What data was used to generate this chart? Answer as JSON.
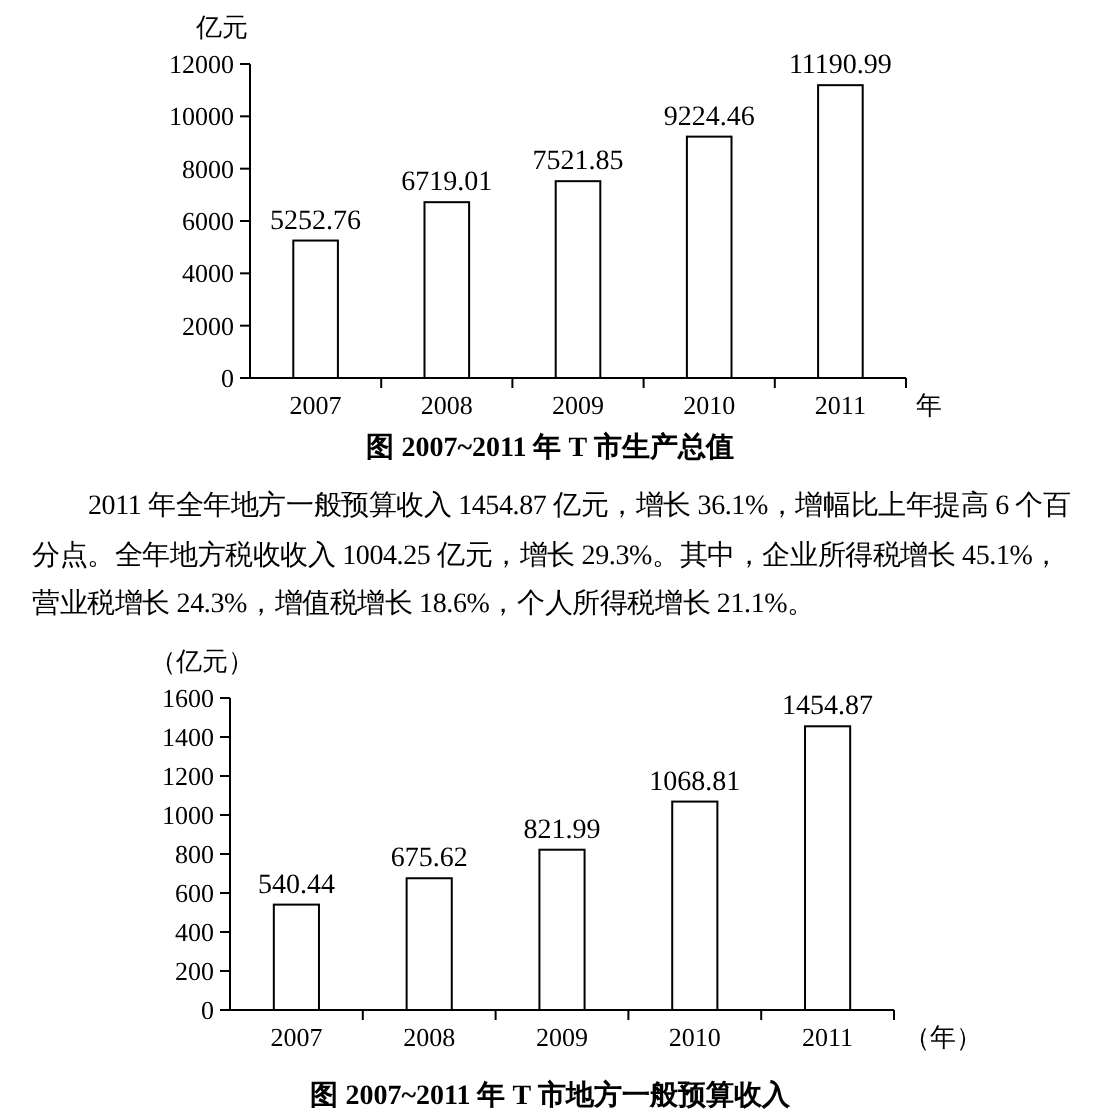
{
  "chart_data": [
    {
      "type": "bar",
      "title": "图 2007~2011 年 T 市生产总值",
      "xlabel": "年",
      "ylabel": "亿元",
      "categories": [
        "2007",
        "2008",
        "2009",
        "2010",
        "2011"
      ],
      "values": [
        5252.76,
        6719.01,
        7521.85,
        9224.46,
        11190.99
      ],
      "color": "#ffffff",
      "ylim": [
        0,
        12000
      ],
      "yticks": [
        0,
        2000,
        4000,
        6000,
        8000,
        10000,
        12000
      ],
      "data_labels": true,
      "annotations": [
        "2011 年全年地方一般预算收入 1454.87 亿元，增长 36.1%，增幅比上年提高 6 个百分点。全年地方税收收入 1004.25 亿元，增长 29.3%。其中，企业所得税增长 45.1%，营业税增长 24.3%，增值税增长 18.6%，个人所得税增长 21.1%。"
      ]
    },
    {
      "type": "bar",
      "title": "图 2007~2011 年 T 市地方一般预算收入",
      "xlabel": "（年）",
      "ylabel": "（亿元）",
      "categories": [
        "2007",
        "2008",
        "2009",
        "2010",
        "2011"
      ],
      "values": [
        540.44,
        675.62,
        821.99,
        1068.81,
        1454.87
      ],
      "color": "#ffffff",
      "ylim": [
        0,
        1600
      ],
      "yticks": [
        0,
        200,
        400,
        600,
        800,
        1000,
        1200,
        1400,
        1600
      ],
      "data_labels": true
    }
  ]
}
